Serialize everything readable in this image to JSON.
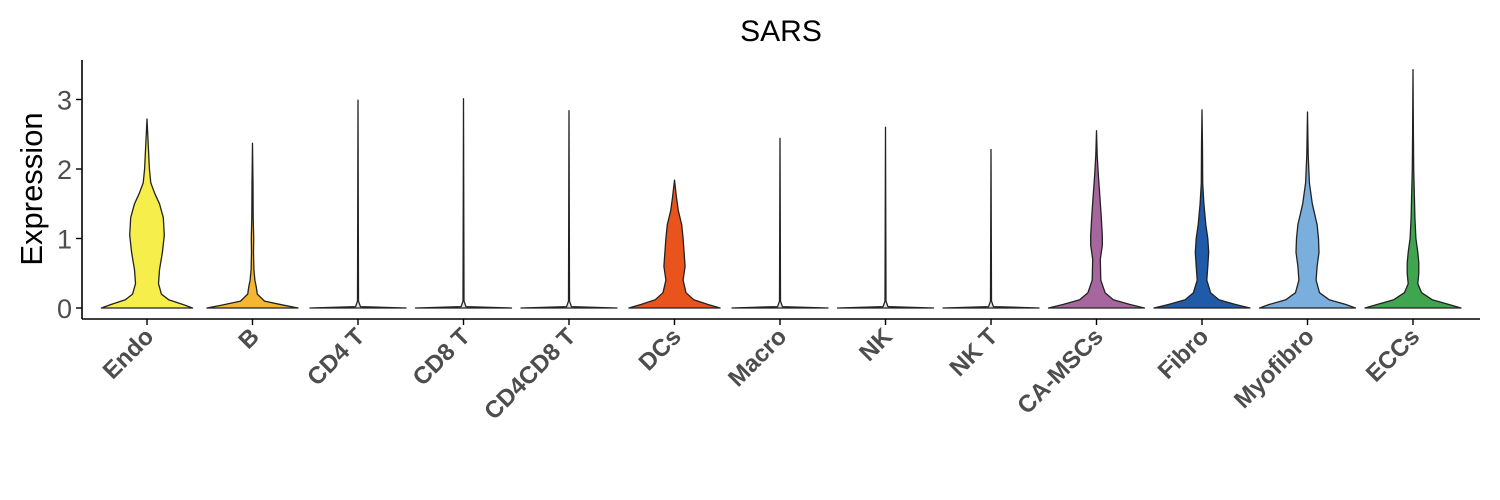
{
  "chart_data": {
    "type": "violin",
    "title": "SARS",
    "xlabel": "",
    "ylabel": "Expression",
    "ylim": [
      -0.15,
      3.6
    ],
    "yticks": [
      0,
      1,
      2,
      3
    ],
    "grid": false,
    "legend": "none",
    "categories": [
      "Endo",
      "B",
      "CD4 T",
      "CD8 T",
      "CD4CD8 T",
      "DCs",
      "Macro",
      "NK",
      "NK T",
      "CA-MSCs",
      "Fibro",
      "Myofibro",
      "ECCs"
    ],
    "colors": [
      "#f6ee4b",
      "#f5b732",
      "#e2e2e2",
      "#e2e2e2",
      "#e2e2e2",
      "#e8541c",
      "#e2e2e2",
      "#e2e2e2",
      "#e2e2e2",
      "#a6679f",
      "#1f5ba8",
      "#79aedd",
      "#3fa64f"
    ],
    "max_values": [
      2.72,
      2.37,
      2.99,
      3.01,
      2.84,
      1.84,
      2.44,
      2.6,
      2.28,
      2.55,
      2.85,
      2.82,
      3.43
    ],
    "density_profiles": [
      [
        [
          0,
          0.95
        ],
        [
          0.05,
          0.75
        ],
        [
          0.12,
          0.45
        ],
        [
          0.2,
          0.3
        ],
        [
          0.35,
          0.24
        ],
        [
          0.55,
          0.26
        ],
        [
          0.8,
          0.32
        ],
        [
          1.05,
          0.36
        ],
        [
          1.3,
          0.34
        ],
        [
          1.5,
          0.26
        ],
        [
          1.65,
          0.16
        ],
        [
          1.8,
          0.08
        ],
        [
          2.0,
          0.05
        ],
        [
          2.3,
          0.03
        ],
        [
          2.72,
          0.0
        ]
      ],
      [
        [
          0,
          0.95
        ],
        [
          0.04,
          0.65
        ],
        [
          0.1,
          0.25
        ],
        [
          0.2,
          0.1
        ],
        [
          0.3,
          0.08
        ],
        [
          0.4,
          0.05
        ],
        [
          0.55,
          0.03
        ],
        [
          0.8,
          0.02
        ],
        [
          1.0,
          0.025
        ],
        [
          1.3,
          0.015
        ],
        [
          1.8,
          0.01
        ],
        [
          2.37,
          0.0
        ]
      ],
      [
        [
          0,
          1.0
        ],
        [
          0.02,
          0.05
        ],
        [
          0.1,
          0.01
        ],
        [
          2.99,
          0.0
        ]
      ],
      [
        [
          0,
          1.0
        ],
        [
          0.02,
          0.05
        ],
        [
          0.1,
          0.01
        ],
        [
          3.01,
          0.0
        ]
      ],
      [
        [
          0,
          1.0
        ],
        [
          0.02,
          0.05
        ],
        [
          0.1,
          0.01
        ],
        [
          2.84,
          0.0
        ]
      ],
      [
        [
          0,
          0.95
        ],
        [
          0.05,
          0.7
        ],
        [
          0.12,
          0.4
        ],
        [
          0.22,
          0.24
        ],
        [
          0.4,
          0.18
        ],
        [
          0.6,
          0.22
        ],
        [
          0.8,
          0.2
        ],
        [
          1.0,
          0.18
        ],
        [
          1.2,
          0.15
        ],
        [
          1.4,
          0.08
        ],
        [
          1.6,
          0.04
        ],
        [
          1.84,
          0.0
        ]
      ],
      [
        [
          0,
          1.0
        ],
        [
          0.02,
          0.05
        ],
        [
          0.1,
          0.01
        ],
        [
          2.44,
          0.0
        ]
      ],
      [
        [
          0,
          1.0
        ],
        [
          0.02,
          0.05
        ],
        [
          0.1,
          0.01
        ],
        [
          2.6,
          0.0
        ]
      ],
      [
        [
          0,
          1.0
        ],
        [
          0.02,
          0.05
        ],
        [
          0.1,
          0.01
        ],
        [
          2.28,
          0.0
        ]
      ],
      [
        [
          0,
          1.0
        ],
        [
          0.05,
          0.7
        ],
        [
          0.12,
          0.35
        ],
        [
          0.22,
          0.18
        ],
        [
          0.4,
          0.09
        ],
        [
          0.7,
          0.08
        ],
        [
          0.9,
          0.12
        ],
        [
          1.05,
          0.12
        ],
        [
          1.3,
          0.1
        ],
        [
          1.6,
          0.07
        ],
        [
          1.9,
          0.04
        ],
        [
          2.2,
          0.015
        ],
        [
          2.55,
          0.0
        ]
      ],
      [
        [
          0,
          1.0
        ],
        [
          0.05,
          0.7
        ],
        [
          0.12,
          0.35
        ],
        [
          0.22,
          0.18
        ],
        [
          0.4,
          0.1
        ],
        [
          0.6,
          0.12
        ],
        [
          0.8,
          0.14
        ],
        [
          1.0,
          0.12
        ],
        [
          1.2,
          0.08
        ],
        [
          1.5,
          0.04
        ],
        [
          1.8,
          0.015
        ],
        [
          2.3,
          0.01
        ],
        [
          2.85,
          0.0
        ]
      ],
      [
        [
          0,
          1.0
        ],
        [
          0.05,
          0.8
        ],
        [
          0.12,
          0.45
        ],
        [
          0.22,
          0.25
        ],
        [
          0.4,
          0.18
        ],
        [
          0.6,
          0.2
        ],
        [
          0.8,
          0.24
        ],
        [
          1.0,
          0.23
        ],
        [
          1.2,
          0.2
        ],
        [
          1.5,
          0.1
        ],
        [
          1.8,
          0.04
        ],
        [
          2.2,
          0.015
        ],
        [
          2.82,
          0.0
        ]
      ],
      [
        [
          0,
          1.0
        ],
        [
          0.05,
          0.75
        ],
        [
          0.12,
          0.4
        ],
        [
          0.22,
          0.18
        ],
        [
          0.35,
          0.1
        ],
        [
          0.5,
          0.12
        ],
        [
          0.65,
          0.12
        ],
        [
          0.8,
          0.1
        ],
        [
          1.0,
          0.06
        ],
        [
          1.3,
          0.04
        ],
        [
          1.6,
          0.03
        ],
        [
          2.0,
          0.015
        ],
        [
          2.5,
          0.008
        ],
        [
          3.43,
          0.0
        ]
      ]
    ]
  }
}
